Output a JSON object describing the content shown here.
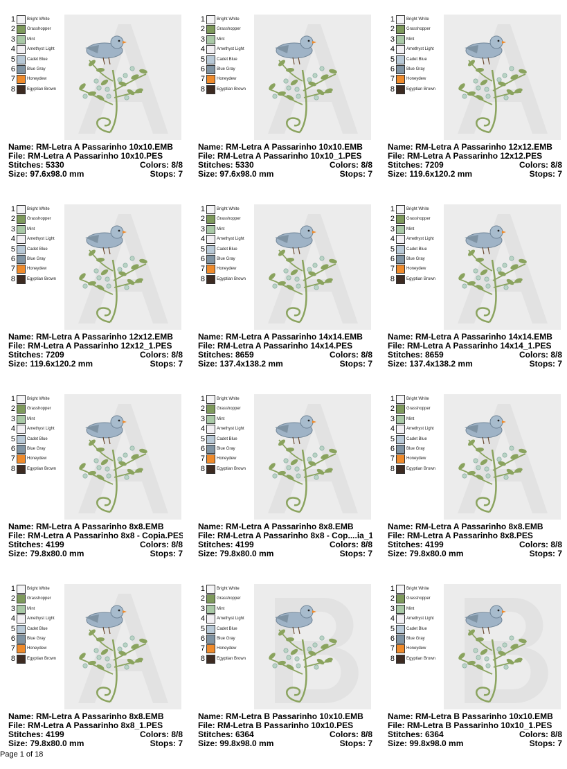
{
  "threads": [
    {
      "number": "1",
      "name": "Bright White",
      "color": "#f4f4f6"
    },
    {
      "number": "2",
      "name": "Grasshopper",
      "color": "#7e9a5c"
    },
    {
      "number": "3",
      "name": "Mint",
      "color": "#a9c8a6"
    },
    {
      "number": "4",
      "name": "Amethyst Light",
      "color": "#f2f0f4"
    },
    {
      "number": "5",
      "name": "Cadet Blue",
      "color": "#b7c8d6"
    },
    {
      "number": "6",
      "name": "Blue Gray",
      "color": "#7f93a3"
    },
    {
      "number": "7",
      "name": "Honeydew",
      "color": "#ef8a2a"
    },
    {
      "number": "8",
      "name": "Egyptian Brown",
      "color": "#3d2b22"
    }
  ],
  "designs": [
    {
      "name": "Name: RM-Letra A Passarinho 10x10.EMB",
      "file": "File: RM-Letra A Passarinho 10x10.PES",
      "stitches": "Stitches: 5330",
      "colors": "Colors: 8/8",
      "size": "Size: 97.6x98.0 mm",
      "stops": "Stops: 7"
    },
    {
      "name": "Name: RM-Letra A Passarinho 10x10.EMB",
      "file": "File: RM-Letra A Passarinho 10x10_1.PES",
      "stitches": "Stitches: 5330",
      "colors": "Colors: 8/8",
      "size": "Size: 97.6x98.0 mm",
      "stops": "Stops: 7"
    },
    {
      "name": "Name: RM-Letra A Passarinho 12x12.EMB",
      "file": "File: RM-Letra A Passarinho 12x12.PES",
      "stitches": "Stitches: 7209",
      "colors": "Colors: 8/8",
      "size": "Size: 119.6x120.2 mm",
      "stops": "Stops: 7"
    },
    {
      "name": "Name: RM-Letra A Passarinho 12x12.EMB",
      "file": "File: RM-Letra A Passarinho 12x12_1.PES",
      "stitches": "Stitches: 7209",
      "colors": "Colors: 8/8",
      "size": "Size: 119.6x120.2 mm",
      "stops": "Stops: 7"
    },
    {
      "name": "Name: RM-Letra A Passarinho 14x14.EMB",
      "file": "File: RM-Letra A Passarinho 14x14.PES",
      "stitches": "Stitches: 8659",
      "colors": "Colors: 8/8",
      "size": "Size: 137.4x138.2 mm",
      "stops": "Stops: 7"
    },
    {
      "name": "Name: RM-Letra A Passarinho 14x14.EMB",
      "file": "File: RM-Letra A Passarinho 14x14_1.PES",
      "stitches": "Stitches: 8659",
      "colors": "Colors: 8/8",
      "size": "Size: 137.4x138.2 mm",
      "stops": "Stops: 7"
    },
    {
      "name": "Name: RM-Letra A Passarinho 8x8.EMB",
      "file": "File: RM-Letra A Passarinho 8x8 - Copia.PES",
      "stitches": "Stitches: 4199",
      "colors": "Colors: 8/8",
      "size": "Size: 79.8x80.0 mm",
      "stops": "Stops: 7"
    },
    {
      "name": "Name: RM-Letra A Passarinho 8x8.EMB",
      "file": "File: RM-Letra A Passarinho 8x8 - Cop....ia_1",
      "stitches": "Stitches: 4199",
      "colors": "Colors: 8/8",
      "size": "Size: 79.8x80.0 mm",
      "stops": "Stops: 7"
    },
    {
      "name": "Name: RM-Letra A Passarinho 8x8.EMB",
      "file": "File: RM-Letra A Passarinho 8x8.PES",
      "stitches": "Stitches: 4199",
      "colors": "Colors: 8/8",
      "size": "Size: 79.8x80.0 mm",
      "stops": "Stops: 7"
    },
    {
      "name": "Name: RM-Letra A Passarinho 8x8.EMB",
      "file": "File: RM-Letra A Passarinho 8x8_1.PES",
      "stitches": "Stitches: 4199",
      "colors": "Colors: 8/8",
      "size": "Size: 79.8x80.0 mm",
      "stops": "Stops: 7"
    },
    {
      "name": "Name: RM-Letra B  Passarinho 10x10.EMB",
      "file": "File: RM-Letra B  Passarinho 10x10.PES",
      "stitches": "Stitches: 6364",
      "colors": "Colors: 8/8",
      "size": "Size: 99.8x98.0 mm",
      "stops": "Stops: 7"
    },
    {
      "name": "Name: RM-Letra B  Passarinho 10x10.EMB",
      "file": "File: RM-Letra B  Passarinho 10x10_1.PES",
      "stitches": "Stitches: 6364",
      "colors": "Colors: 8/8",
      "size": "Size: 99.8x98.0 mm",
      "stops": "Stops: 7"
    }
  ],
  "footer": "Page 1 of 18"
}
